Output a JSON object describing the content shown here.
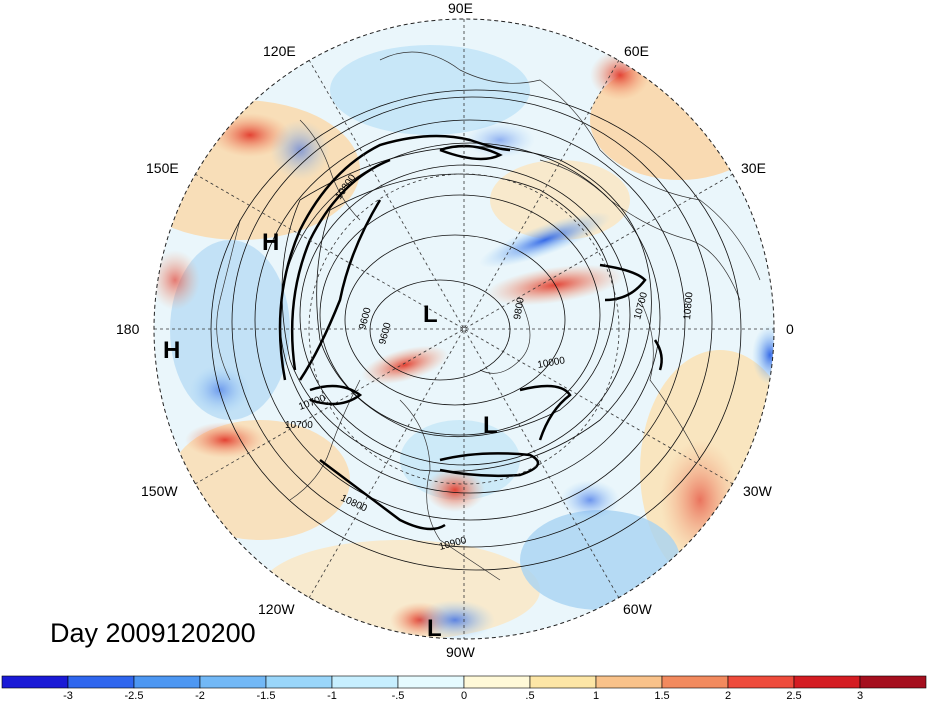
{
  "title": "Day 2009120200",
  "longitude_labels": {
    "lon_90E": "90E",
    "lon_60E": "60E",
    "lon_30E": "30E",
    "lon_0": "0",
    "lon_30W": "30W",
    "lon_60W": "60W",
    "lon_90W": "90W",
    "lon_120W": "120W",
    "lon_150W": "150W",
    "lon_180": "180",
    "lon_150E": "150E",
    "lon_120E": "120E"
  },
  "pressure_centers": [
    {
      "type": "H",
      "label": "H"
    },
    {
      "type": "H",
      "label": "H"
    },
    {
      "type": "L",
      "label": "L"
    },
    {
      "type": "L",
      "label": "L"
    },
    {
      "type": "L",
      "label": "L"
    }
  ],
  "contour_labels": [
    "10800",
    "9600",
    "9600",
    "9800",
    "10000",
    "10700",
    "10700",
    "10800",
    "10900",
    "10700",
    "10800"
  ],
  "colorbar": {
    "labels": [
      "-3",
      "-2.5",
      "-2",
      "-1.5",
      "-1",
      "-.5",
      "0",
      ".5",
      "1",
      "1.5",
      "2",
      "2.5",
      "3"
    ],
    "colors": [
      "#1a1ad6",
      "#2f66ee",
      "#4d97f2",
      "#72b8f6",
      "#9ad6fa",
      "#c7efff",
      "#e6fbff",
      "#fff9d8",
      "#fde6a6",
      "#f9c28a",
      "#f28a5e",
      "#ee4b3b",
      "#d41c22",
      "#a50f1e"
    ]
  }
}
